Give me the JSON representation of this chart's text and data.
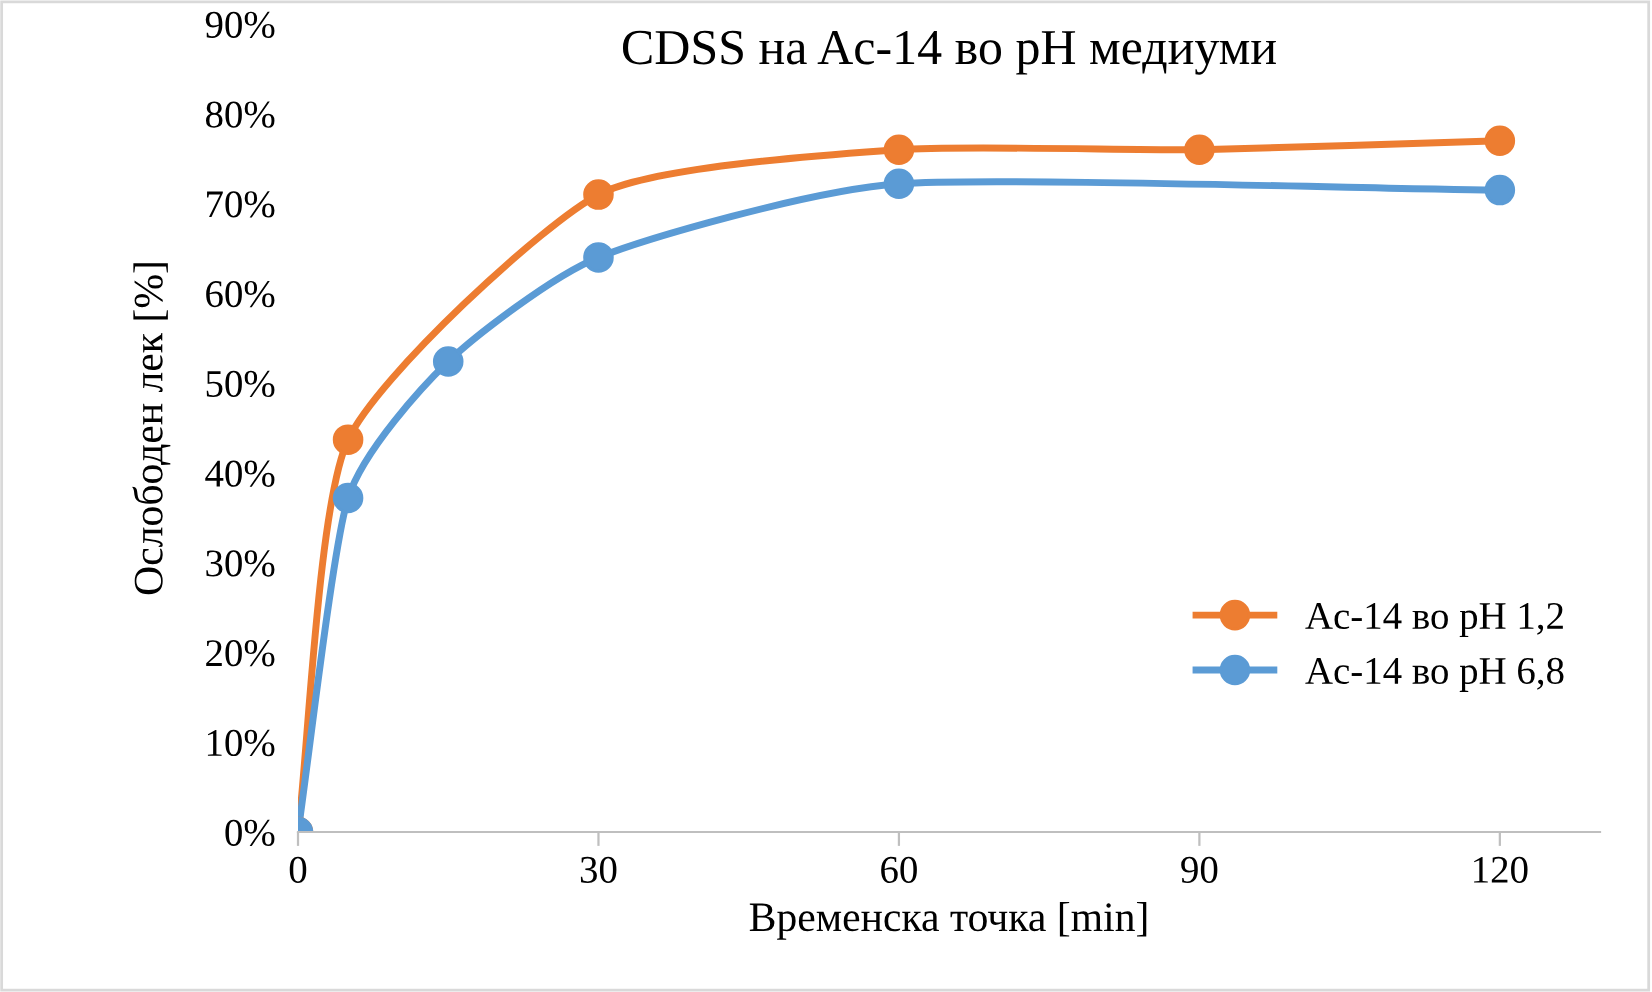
{
  "chart_data": {
    "type": "line",
    "title": "CDSS на Ac-14 во pH медиуми",
    "xlabel": "Временска точка [min]",
    "ylabel": "Ослободен лек [%]",
    "xlim": [
      0,
      130
    ],
    "xticks": [
      0,
      30,
      60,
      90,
      120
    ],
    "ylim": [
      0,
      90
    ],
    "yticks": [
      {
        "value": 0,
        "label": "0%"
      },
      {
        "value": 10,
        "label": "10%"
      },
      {
        "value": 20,
        "label": "20%"
      },
      {
        "value": 30,
        "label": "30%"
      },
      {
        "value": 40,
        "label": "40%"
      },
      {
        "value": 50,
        "label": "50%"
      },
      {
        "value": 60,
        "label": "60%"
      },
      {
        "value": 70,
        "label": "70%"
      },
      {
        "value": 80,
        "label": "80%"
      },
      {
        "value": 90,
        "label": "90%"
      }
    ],
    "grid": false,
    "legend": "bottom right",
    "marker": "circle",
    "line_style": "solid",
    "series": [
      {
        "name": "Ac-14 во pH 1,2",
        "color": "#ed7d31",
        "x": [
          0,
          5,
          30,
          60,
          90,
          120
        ],
        "values": [
          0,
          43.7,
          71,
          76,
          76,
          77
        ]
      },
      {
        "name": "Ac-14 во pH 6,8",
        "color": "#5b9bd5",
        "x": [
          0,
          5,
          15,
          30,
          60,
          120
        ],
        "values": [
          0,
          37.2,
          52.4,
          64,
          72.2,
          71.5
        ]
      }
    ]
  }
}
